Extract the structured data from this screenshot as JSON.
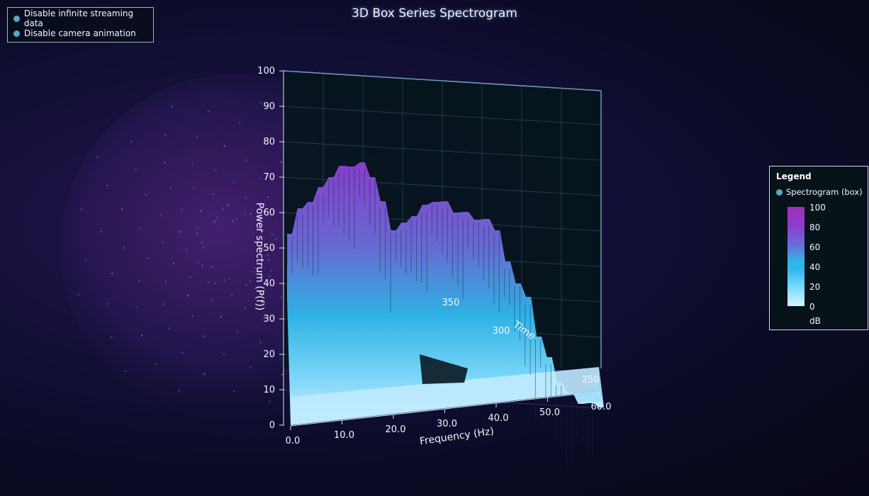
{
  "title": "3D Box Series Spectrogram",
  "controls": {
    "items": [
      "Disable infinite streaming data",
      "Disable camera animation"
    ],
    "dot_color": "#5aa8c8"
  },
  "legend": {
    "title": "Legend",
    "entry": "Spectrogram (box)",
    "scale_ticks": [
      "100",
      "80",
      "60",
      "40",
      "20",
      "0"
    ],
    "unit": "dB",
    "gradient_colors": [
      "#d8f4ff",
      "#2fb6ea",
      "#6a6cd6",
      "#a12fb8"
    ]
  },
  "chart_data": {
    "type": "heatmap",
    "title": "3D Box Series Spectrogram",
    "xlabel": "Frequency (Hz)",
    "ylabel": "Power spectrum (P(f))",
    "zlabel": "Time",
    "xlim": [
      0,
      60
    ],
    "ylim": [
      0,
      100
    ],
    "x_ticks": [
      "0.0",
      "10.0",
      "20.0",
      "30.0",
      "40.0",
      "50.0",
      "60.0"
    ],
    "y_ticks": [
      "0",
      "10",
      "20",
      "30",
      "40",
      "50",
      "60",
      "70",
      "80",
      "90",
      "100"
    ],
    "z_ticks": [
      "250",
      "300",
      "350"
    ],
    "legend_placement": "right",
    "grid": true,
    "colormap_unit": "dB",
    "colormap_range": [
      0,
      100
    ],
    "spectrum_profile": {
      "frequency": [
        0,
        2,
        4,
        6,
        8,
        10,
        12,
        14,
        16,
        18,
        20,
        22,
        24,
        26,
        28,
        30,
        32,
        34,
        36,
        38,
        40,
        42,
        44,
        46,
        48,
        50,
        52,
        54,
        56,
        58,
        60
      ],
      "power": [
        54,
        60,
        63,
        66,
        70,
        72,
        73,
        73,
        70,
        62,
        55,
        56,
        59,
        61,
        63,
        62,
        60,
        59,
        58,
        57,
        55,
        45,
        40,
        35,
        25,
        18,
        12,
        8,
        6,
        5,
        5
      ]
    }
  }
}
